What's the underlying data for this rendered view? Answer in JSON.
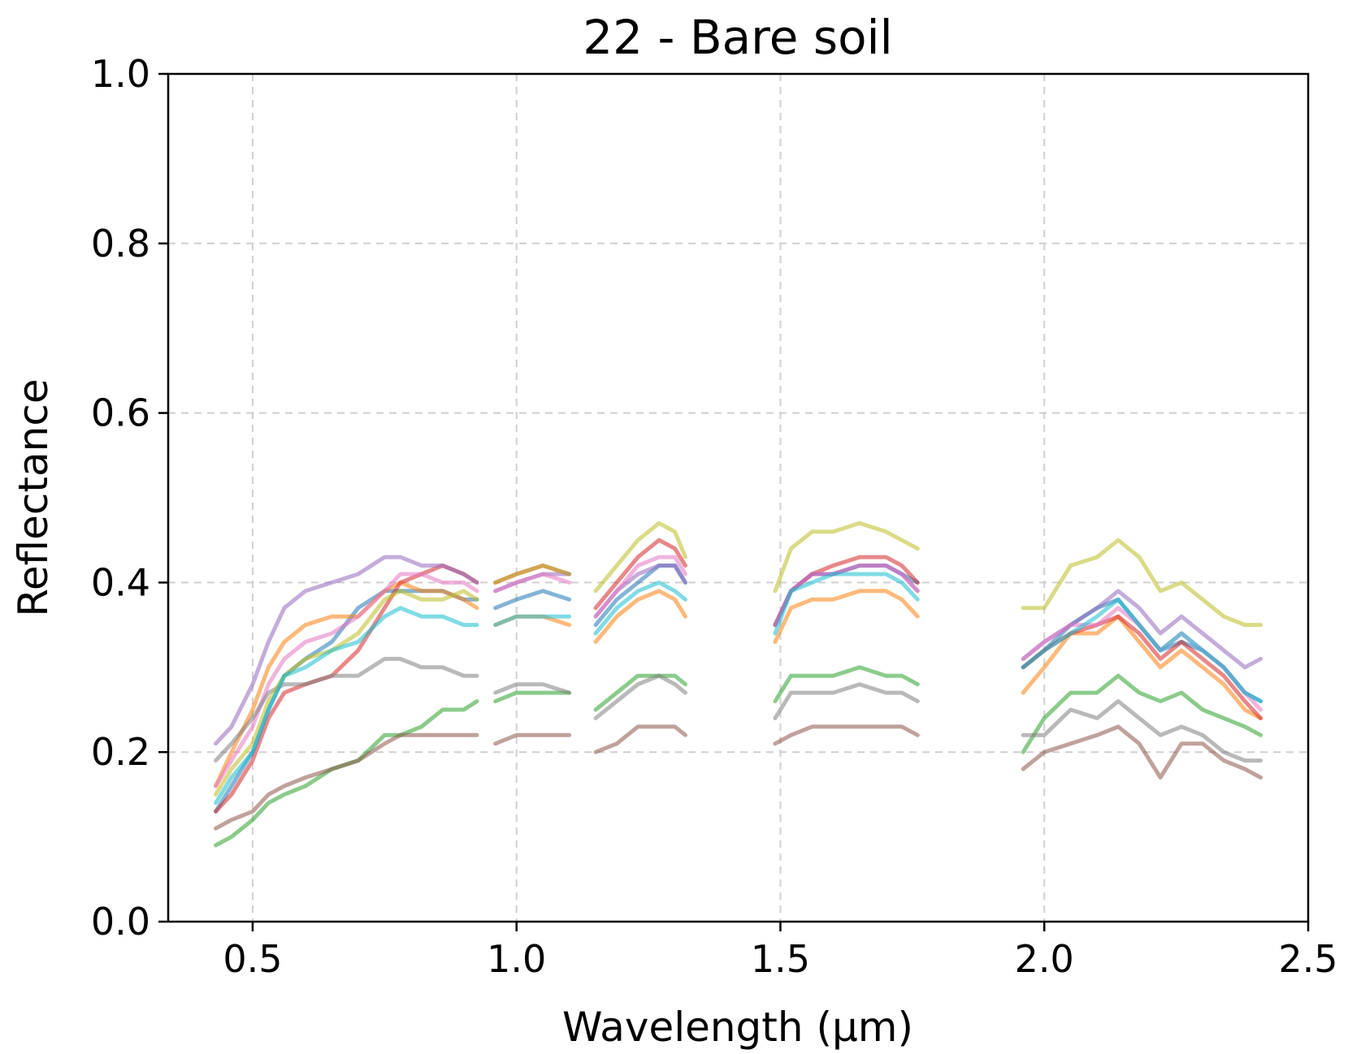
{
  "chart_data": {
    "type": "line",
    "title": "22 - Bare soil",
    "xlabel": "Wavelength (μm)",
    "ylabel": "Reflectance",
    "xlim": [
      0.34,
      2.5
    ],
    "ylim": [
      0.0,
      1.0
    ],
    "xticks": [
      "0.5",
      "1.0",
      "1.5",
      "2.0",
      "2.5"
    ],
    "yticks": [
      "0.0",
      "0.2",
      "0.4",
      "0.6",
      "0.8",
      "1.0"
    ],
    "grid": true,
    "legend": "none",
    "bands": [
      {
        "x": [
          0.43,
          0.46,
          0.5,
          0.53,
          0.56,
          0.6,
          0.65,
          0.7,
          0.75,
          0.78,
          0.82,
          0.86,
          0.9,
          0.925
        ]
      },
      {
        "x": [
          0.96,
          1.0,
          1.05,
          1.1
        ]
      },
      {
        "x": [
          1.15,
          1.19,
          1.23,
          1.27,
          1.3,
          1.32
        ]
      },
      {
        "x": [
          1.49,
          1.52,
          1.56,
          1.6,
          1.65,
          1.7,
          1.73,
          1.76
        ]
      },
      {
        "x": [
          1.96,
          2.0,
          2.05,
          2.1,
          2.14,
          2.18,
          2.22,
          2.26,
          2.3,
          2.34,
          2.38,
          2.41
        ]
      }
    ],
    "series": [
      {
        "color": "#1f77b4",
        "values": [
          [
            0.13,
            0.16,
            0.2,
            0.25,
            0.29,
            0.31,
            0.33,
            0.37,
            0.39,
            0.39,
            0.39,
            0.39,
            0.38,
            0.38
          ],
          [
            0.37,
            0.38,
            0.39,
            0.38
          ],
          [
            0.35,
            0.38,
            0.4,
            0.42,
            0.42,
            0.4
          ],
          [
            0.35,
            0.39,
            0.41,
            0.41,
            0.42,
            0.42,
            0.41,
            0.4
          ],
          [
            0.3,
            0.32,
            0.35,
            0.37,
            0.38,
            0.35,
            0.32,
            0.33,
            0.32,
            0.3,
            0.27,
            0.26
          ]
        ]
      },
      {
        "color": "#ff7f0e",
        "values": [
          [
            0.16,
            0.2,
            0.25,
            0.3,
            0.33,
            0.35,
            0.36,
            0.36,
            0.39,
            0.4,
            0.39,
            0.39,
            0.38,
            0.37
          ],
          [
            0.35,
            0.36,
            0.36,
            0.35
          ],
          [
            0.33,
            0.36,
            0.38,
            0.39,
            0.38,
            0.36
          ],
          [
            0.33,
            0.37,
            0.38,
            0.38,
            0.39,
            0.39,
            0.38,
            0.36
          ],
          [
            0.27,
            0.3,
            0.34,
            0.34,
            0.36,
            0.33,
            0.3,
            0.32,
            0.3,
            0.28,
            0.25,
            0.24
          ]
        ]
      },
      {
        "color": "#2ca02c",
        "values": [
          [
            0.09,
            0.1,
            0.12,
            0.14,
            0.15,
            0.16,
            0.18,
            0.19,
            0.22,
            0.22,
            0.23,
            0.25,
            0.25,
            0.26
          ],
          [
            0.26,
            0.27,
            0.27,
            0.27
          ],
          [
            0.25,
            0.27,
            0.29,
            0.29,
            0.29,
            0.28
          ],
          [
            0.26,
            0.29,
            0.29,
            0.29,
            0.3,
            0.29,
            0.29,
            0.28
          ],
          [
            0.2,
            0.24,
            0.27,
            0.27,
            0.29,
            0.27,
            0.26,
            0.27,
            0.25,
            0.24,
            0.23,
            0.22
          ]
        ]
      },
      {
        "color": "#d62728",
        "values": [
          [
            0.13,
            0.15,
            0.19,
            0.24,
            0.27,
            0.28,
            0.29,
            0.32,
            0.37,
            0.4,
            0.41,
            0.42,
            0.41,
            0.4
          ],
          [
            0.4,
            0.41,
            0.42,
            0.41
          ],
          [
            0.37,
            0.4,
            0.43,
            0.45,
            0.44,
            0.42
          ],
          [
            0.35,
            0.39,
            0.41,
            0.42,
            0.43,
            0.43,
            0.42,
            0.4
          ],
          [
            0.3,
            0.32,
            0.34,
            0.35,
            0.36,
            0.34,
            0.31,
            0.33,
            0.31,
            0.29,
            0.26,
            0.24
          ]
        ]
      },
      {
        "color": "#9467bd",
        "values": [
          [
            0.21,
            0.23,
            0.28,
            0.33,
            0.37,
            0.39,
            0.4,
            0.41,
            0.43,
            0.43,
            0.42,
            0.42,
            0.41,
            0.4
          ],
          [
            0.39,
            0.4,
            0.41,
            0.41
          ],
          [
            0.36,
            0.39,
            0.41,
            0.42,
            0.42,
            0.4
          ],
          [
            0.35,
            0.39,
            0.41,
            0.41,
            0.42,
            0.42,
            0.41,
            0.39
          ],
          [
            0.31,
            0.33,
            0.35,
            0.37,
            0.39,
            0.37,
            0.34,
            0.36,
            0.34,
            0.32,
            0.3,
            0.31
          ]
        ]
      },
      {
        "color": "#8c564b",
        "values": [
          [
            0.11,
            0.12,
            0.13,
            0.15,
            0.16,
            0.17,
            0.18,
            0.19,
            0.21,
            0.22,
            0.22,
            0.22,
            0.22,
            0.22
          ],
          [
            0.21,
            0.22,
            0.22,
            0.22
          ],
          [
            0.2,
            0.21,
            0.23,
            0.23,
            0.23,
            0.22
          ],
          [
            0.21,
            0.22,
            0.23,
            0.23,
            0.23,
            0.23,
            0.23,
            0.22
          ],
          [
            0.18,
            0.2,
            0.21,
            0.22,
            0.23,
            0.21,
            0.17,
            0.21,
            0.21,
            0.19,
            0.18,
            0.17
          ]
        ]
      },
      {
        "color": "#e377c2",
        "values": [
          [
            0.16,
            0.19,
            0.23,
            0.28,
            0.31,
            0.33,
            0.34,
            0.36,
            0.39,
            0.41,
            0.41,
            0.4,
            0.4,
            0.39
          ],
          [
            0.39,
            0.4,
            0.41,
            0.4
          ],
          [
            0.36,
            0.39,
            0.42,
            0.43,
            0.43,
            0.41
          ],
          [
            0.35,
            0.39,
            0.41,
            0.41,
            0.42,
            0.42,
            0.41,
            0.39
          ],
          [
            0.31,
            0.33,
            0.35,
            0.35,
            0.37,
            0.35,
            0.32,
            0.34,
            0.32,
            0.3,
            0.27,
            0.25
          ]
        ]
      },
      {
        "color": "#7f7f7f",
        "values": [
          [
            0.19,
            0.21,
            0.24,
            0.27,
            0.28,
            0.28,
            0.29,
            0.29,
            0.31,
            0.31,
            0.3,
            0.3,
            0.29,
            0.29
          ],
          [
            0.27,
            0.28,
            0.28,
            0.27
          ],
          [
            0.24,
            0.26,
            0.28,
            0.29,
            0.28,
            0.27
          ],
          [
            0.24,
            0.27,
            0.27,
            0.27,
            0.28,
            0.27,
            0.27,
            0.26
          ],
          [
            0.22,
            0.22,
            0.25,
            0.24,
            0.26,
            0.24,
            0.22,
            0.23,
            0.22,
            0.2,
            0.19,
            0.19
          ]
        ]
      },
      {
        "color": "#bcbd22",
        "values": [
          [
            0.15,
            0.18,
            0.21,
            0.26,
            0.29,
            0.31,
            0.32,
            0.34,
            0.38,
            0.39,
            0.38,
            0.38,
            0.39,
            0.38
          ],
          [
            0.4,
            0.41,
            0.42,
            0.41
          ],
          [
            0.39,
            0.42,
            0.45,
            0.47,
            0.46,
            0.43
          ],
          [
            0.39,
            0.44,
            0.46,
            0.46,
            0.47,
            0.46,
            0.45,
            0.44
          ],
          [
            0.37,
            0.37,
            0.42,
            0.43,
            0.45,
            0.43,
            0.39,
            0.4,
            0.38,
            0.36,
            0.35,
            0.35
          ]
        ]
      },
      {
        "color": "#17becf",
        "values": [
          [
            0.14,
            0.17,
            0.2,
            0.25,
            0.29,
            0.3,
            0.32,
            0.33,
            0.36,
            0.37,
            0.36,
            0.36,
            0.35,
            0.35
          ],
          [
            0.35,
            0.36,
            0.36,
            0.36
          ],
          [
            0.34,
            0.37,
            0.39,
            0.4,
            0.39,
            0.38
          ],
          [
            0.34,
            0.39,
            0.4,
            0.41,
            0.41,
            0.41,
            0.4,
            0.38
          ],
          [
            0.3,
            0.32,
            0.34,
            0.36,
            0.38,
            0.35,
            0.32,
            0.34,
            0.32,
            0.3,
            0.27,
            0.26
          ]
        ]
      }
    ]
  }
}
